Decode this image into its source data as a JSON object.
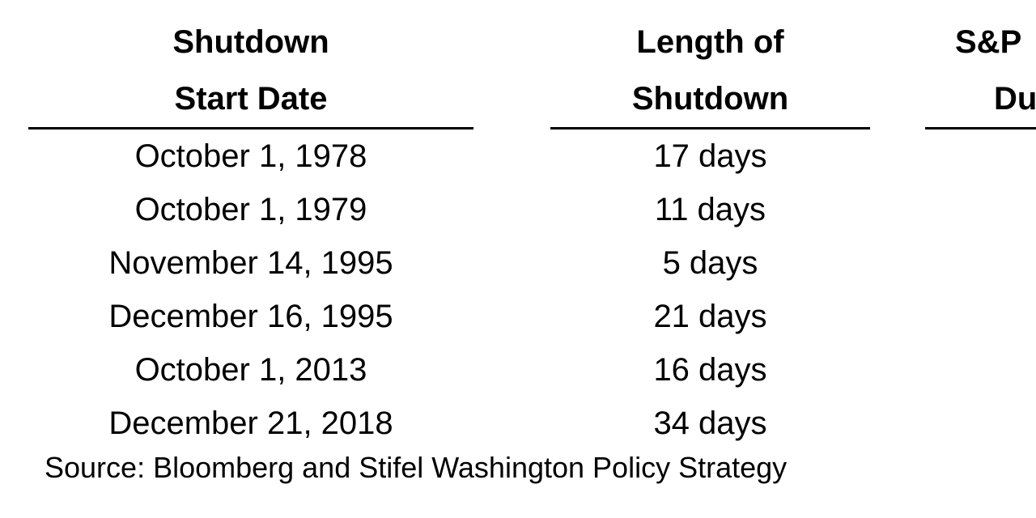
{
  "colors": {
    "background": "#ffffff",
    "text": "#000000",
    "rule": "#000000"
  },
  "table": {
    "columns": [
      {
        "line1": "Shutdown",
        "line2": "Start Date"
      },
      {
        "line1": "Length of",
        "line2": "Shutdown"
      },
      {
        "line1": "S&P",
        "line2": "Du"
      }
    ],
    "rows": [
      {
        "date": "October 1, 1978",
        "length": "17 days"
      },
      {
        "date": "October 1, 1979",
        "length": "11 days"
      },
      {
        "date": "November 14, 1995",
        "length": "5 days"
      },
      {
        "date": "December 16, 1995",
        "length": "21 days"
      },
      {
        "date": "October 1, 2013",
        "length": "16 days"
      },
      {
        "date": "December 21, 2018",
        "length": "34 days"
      }
    ],
    "source": "Source: Bloomberg and Stifel Washington Policy Strategy"
  },
  "chart_data": {
    "type": "table",
    "columns": [
      "Shutdown Start Date",
      "Length of Shutdown"
    ],
    "clipped_third_column_header_visible_text": [
      "S&P",
      "Du"
    ],
    "rows": [
      [
        "October 1, 1978",
        "17 days"
      ],
      [
        "October 1, 1979",
        "11 days"
      ],
      [
        "November 14, 1995",
        "5 days"
      ],
      [
        "December 16, 1995",
        "21 days"
      ],
      [
        "October 1, 2013",
        "16 days"
      ],
      [
        "December 21, 2018",
        "34 days"
      ]
    ],
    "length_of_shutdown_days": [
      17,
      11,
      5,
      21,
      16,
      34
    ],
    "source": "Source: Bloomberg and Stifel Washington Policy Strategy"
  }
}
